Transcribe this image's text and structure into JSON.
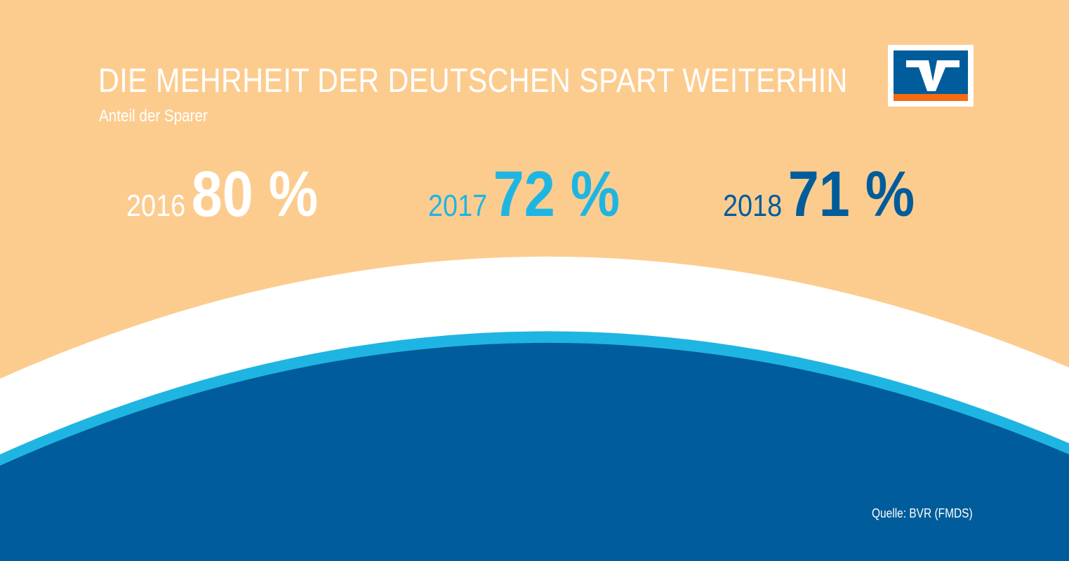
{
  "colors": {
    "background": "#fccc8f",
    "white_band": "#ffffff",
    "light_blue": "#1fb5e2",
    "dark_blue": "#005c9a",
    "logo_orange": "#f46b12"
  },
  "header": {
    "title": "DIE MEHRHEIT DER DEUTSCHEN SPART WEITERHIN",
    "subtitle": "Anteil der Sparer"
  },
  "logo": {
    "icon": "volksbank-raiffeisenbank-logo"
  },
  "chart_data": {
    "type": "table",
    "title": "DIE MEHRHEIT DER DEUTSCHEN SPART WEITERHIN",
    "subtitle": "Anteil der Sparer",
    "categories": [
      "2016",
      "2017",
      "2018"
    ],
    "values": [
      80,
      72,
      71
    ],
    "value_labels": [
      "80 %",
      "72 %",
      "71 %"
    ],
    "colors": [
      "#ffffff",
      "#1fb5e2",
      "#005c9a"
    ],
    "grid": false
  },
  "footer": {
    "source": "Quelle: BVR (FMDS)"
  }
}
